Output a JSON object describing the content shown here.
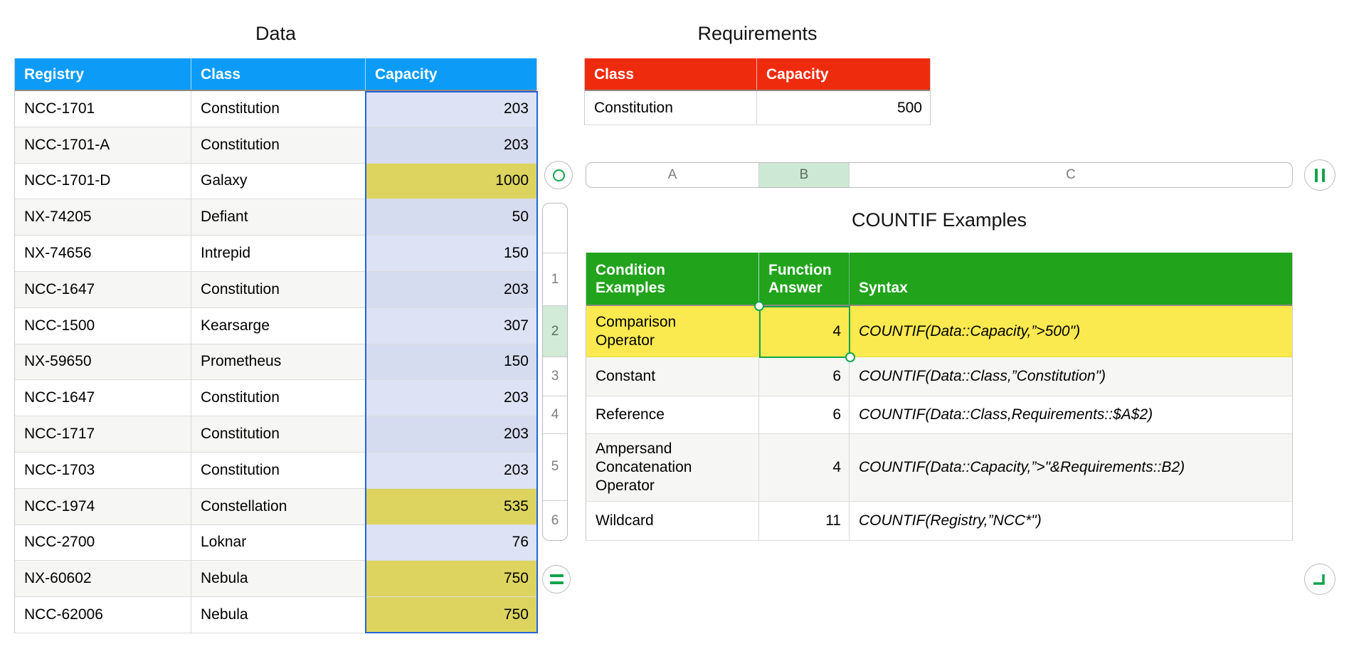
{
  "data_table": {
    "title": "Data",
    "headers": [
      "Registry",
      "Class",
      "Capacity"
    ],
    "rows": [
      {
        "registry": "NCC-1701",
        "class": "Constitution",
        "capacity": "203",
        "capacity_highlighted": false
      },
      {
        "registry": "NCC-1701-A",
        "class": "Constitution",
        "capacity": "203",
        "capacity_highlighted": false
      },
      {
        "registry": "NCC-1701-D",
        "class": "Galaxy",
        "capacity": "1000",
        "capacity_highlighted": true
      },
      {
        "registry": "NX-74205",
        "class": "Defiant",
        "capacity": "50",
        "capacity_highlighted": false
      },
      {
        "registry": "NX-74656",
        "class": "Intrepid",
        "capacity": "150",
        "capacity_highlighted": false
      },
      {
        "registry": "NCC-1647",
        "class": "Constitution",
        "capacity": "203",
        "capacity_highlighted": false
      },
      {
        "registry": "NCC-1500",
        "class": "Kearsarge",
        "capacity": "307",
        "capacity_highlighted": false
      },
      {
        "registry": "NX-59650",
        "class": "Prometheus",
        "capacity": "150",
        "capacity_highlighted": false
      },
      {
        "registry": "NCC-1647",
        "class": "Constitution",
        "capacity": "203",
        "capacity_highlighted": false
      },
      {
        "registry": "NCC-1717",
        "class": "Constitution",
        "capacity": "203",
        "capacity_highlighted": false
      },
      {
        "registry": "NCC-1703",
        "class": "Constitution",
        "capacity": "203",
        "capacity_highlighted": false
      },
      {
        "registry": "NCC-1974",
        "class": "Constellation",
        "capacity": "535",
        "capacity_highlighted": true
      },
      {
        "registry": "NCC-2700",
        "class": "Loknar",
        "capacity": "76",
        "capacity_highlighted": false
      },
      {
        "registry": "NX-60602",
        "class": "Nebula",
        "capacity": "750",
        "capacity_highlighted": true
      },
      {
        "registry": "NCC-62006",
        "class": "Nebula",
        "capacity": "750",
        "capacity_highlighted": true
      }
    ]
  },
  "requirements_table": {
    "title": "Requirements",
    "headers": [
      "Class",
      "Capacity"
    ],
    "rows": [
      {
        "class": "Constitution",
        "capacity": "500"
      }
    ]
  },
  "countif_table": {
    "title": "COUNTIF Examples",
    "headers": [
      "Condition Examples",
      "Function Answer",
      "Syntax"
    ],
    "rows": [
      {
        "row_number": "2",
        "condition": "Comparison Operator",
        "answer": "4",
        "syntax": "COUNTIF(Data::Capacity,”>500\")",
        "highlighted": true,
        "selected_cell": "B2"
      },
      {
        "row_number": "3",
        "condition": "Constant",
        "answer": "6",
        "syntax": "COUNTIF(Data::Class,”Constitution\")",
        "highlighted": false
      },
      {
        "row_number": "4",
        "condition": "Reference",
        "answer": "6",
        "syntax": "COUNTIF(Data::Class,Requirements::$A$2)",
        "highlighted": false
      },
      {
        "row_number": "5",
        "condition": "Ampersand Concatenation Operator",
        "answer": "4",
        "syntax": "COUNTIF(Data::Capacity,”>\"&Requirements::B2)",
        "highlighted": false
      },
      {
        "row_number": "6",
        "condition": "Wildcard",
        "answer": "11",
        "syntax": "COUNTIF(Registry,”NCC*\")",
        "highlighted": false
      }
    ]
  },
  "column_strip": {
    "labels": [
      "A",
      "B",
      "C"
    ],
    "selected": "B"
  },
  "row_rail": {
    "labels": [
      "1",
      "2",
      "3",
      "4",
      "5",
      "6"
    ],
    "selected": "2"
  },
  "handles": {
    "table_handle_icon": "circle-ring",
    "add_column_icon": "double-vertical-bars",
    "add_row_icon": "double-horizontal-bars",
    "resize_icon": "corner-angle"
  },
  "colors": {
    "data_header": "#0c9cf8",
    "requirements_header": "#ef2b0d",
    "countif_header": "#21a31c",
    "row_highlight_yellow": "#fae94f",
    "capacity_highlight_yellow": "#dcd45f",
    "selected_column_fill": "#dde3f5",
    "selected_column_fill_alt": "#d6dcf0",
    "selection_border_blue": "#2563d8",
    "selection_border_green": "#12a24b",
    "selected_ref_tab_tint": "#cde8d4"
  }
}
